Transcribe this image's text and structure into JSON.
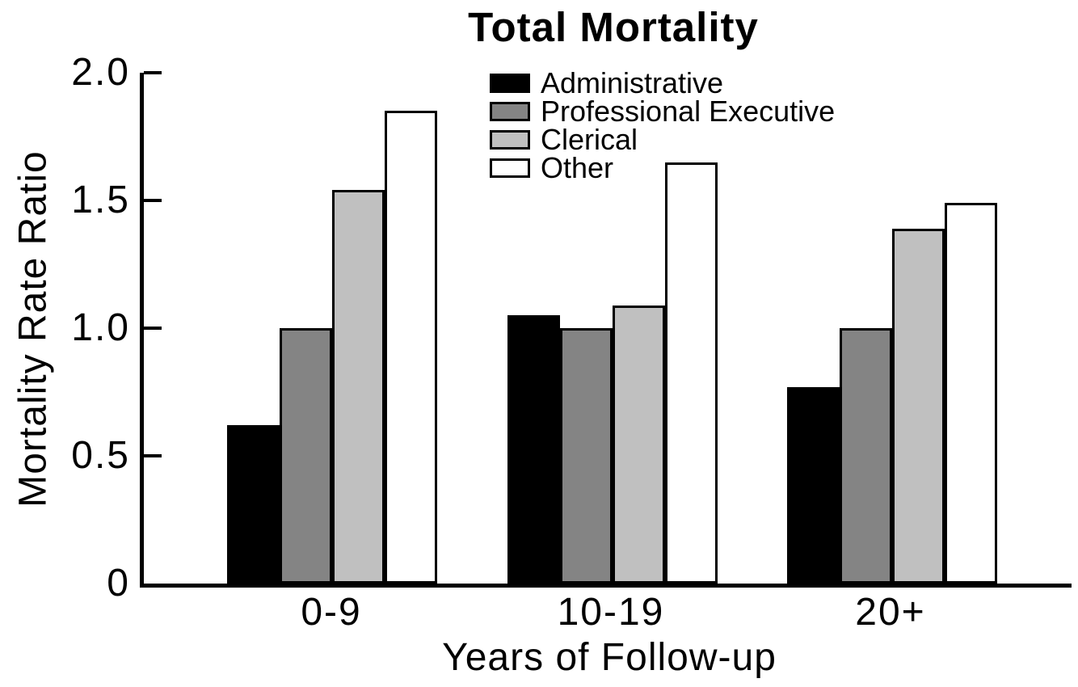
{
  "chart_data": {
    "type": "bar",
    "title": "Total Mortality",
    "xlabel": "Years of Follow-up",
    "ylabel": "Mortality Rate Ratio",
    "categories": [
      "0-9",
      "10-19",
      "20+"
    ],
    "series": [
      {
        "name": "Administrative",
        "color": "#000000",
        "values": [
          0.62,
          1.05,
          0.77
        ]
      },
      {
        "name": "Professional Executive",
        "color": "#848484",
        "values": [
          1.0,
          1.0,
          1.0
        ]
      },
      {
        "name": "Clerical",
        "color": "#c0c0c0",
        "values": [
          1.54,
          1.09,
          1.39
        ]
      },
      {
        "name": "Other",
        "color": "#ffffff",
        "values": [
          1.85,
          1.65,
          1.49
        ]
      }
    ],
    "ylim": [
      0,
      2.0
    ],
    "yticks": [
      {
        "value": 0.0,
        "label": "0"
      },
      {
        "value": 0.5,
        "label": "0.5"
      },
      {
        "value": 1.0,
        "label": "1.0"
      },
      {
        "value": 1.5,
        "label": "1.5"
      },
      {
        "value": 2.0,
        "label": "2.0"
      }
    ],
    "grid": false,
    "legend_position": "top-center-inside",
    "bar_edge_color": "#000000",
    "text_color": "#000000"
  }
}
